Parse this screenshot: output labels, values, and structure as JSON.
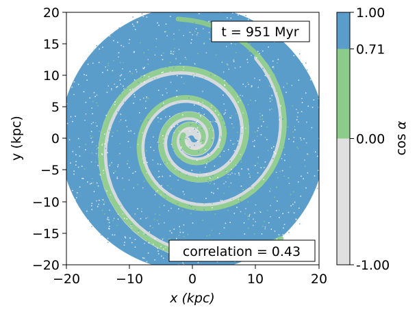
{
  "chart_data": {
    "type": "heatmap",
    "title": "",
    "xlabel": "x (kpc)",
    "ylabel": "y (kpc)",
    "xlim": [
      -20,
      20
    ],
    "ylim": [
      -20,
      20
    ],
    "x_ticks": [
      "−20",
      "−10",
      "0",
      "10",
      "20"
    ],
    "y_ticks": [
      "20",
      "15",
      "10",
      "5",
      "0",
      "−5",
      "−10",
      "−15",
      "−20"
    ],
    "grid": false,
    "annotations": {
      "time": "t = 951 Myr",
      "correlation": "correlation = 0.43"
    },
    "colorbar": {
      "label": "cos α",
      "label_prefix": "cos",
      "label_symbol": "α",
      "ticks": [
        "1.00",
        "0.71",
        "0.00",
        "-1.00"
      ],
      "levels": [
        {
          "from": -1.0,
          "to": 0.0,
          "color": "#e0e0e0"
        },
        {
          "from": 0.0,
          "to": 0.71,
          "color": "#8ccc8a"
        },
        {
          "from": 0.71,
          "to": 1.0,
          "color": "#5a9dcb"
        }
      ]
    },
    "field": {
      "disk_radius_kpc": 20,
      "dominant_color": "#5a9dcb",
      "arm_colors": [
        "#e0e0e0",
        "#8ccc8a"
      ],
      "correlation_value": 0.43
    }
  }
}
